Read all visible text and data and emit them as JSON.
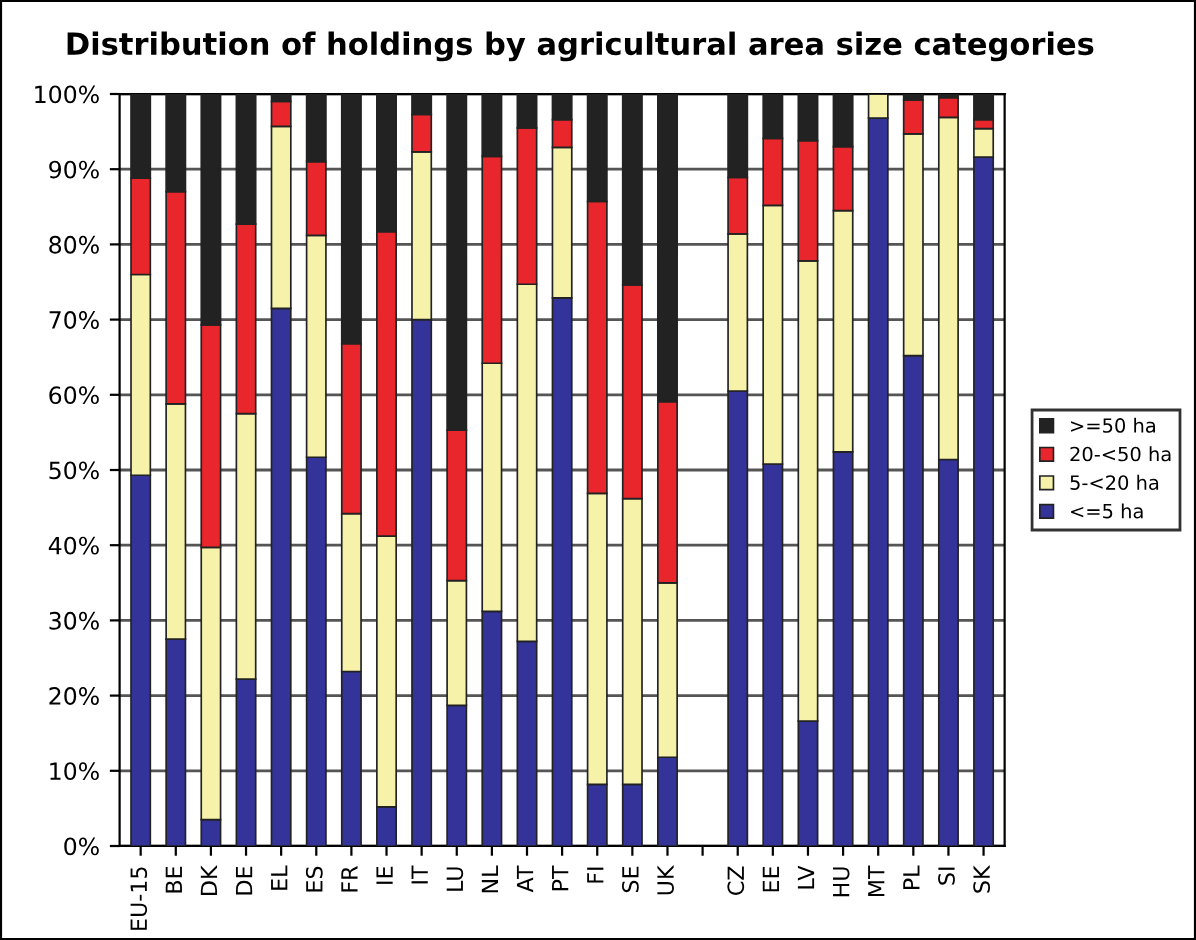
{
  "chart_data": {
    "type": "bar",
    "title": "Distribution of holdings by agricultural area size categories",
    "stacked": true,
    "categories": [
      "EU-15",
      "BE",
      "DK",
      "DE",
      "EL",
      "ES",
      "FR",
      "IE",
      "IT",
      "LU",
      "NL",
      "AT",
      "PT",
      "FI",
      "SE",
      "UK",
      null,
      "CZ",
      "EE",
      "LV",
      "HU",
      "MT",
      "PL",
      "SI",
      "SK"
    ],
    "series": [
      {
        "name": "<=5 ha",
        "color": "#333399",
        "values": [
          49.3,
          27.5,
          3.5,
          22.2,
          71.5,
          51.7,
          23.2,
          5.2,
          70,
          18.7,
          31.2,
          27.2,
          72.9,
          8.2,
          8.2,
          11.8,
          null,
          60.5,
          50.8,
          16.6,
          52.4,
          96.8,
          65.2,
          51.4,
          91.6
        ]
      },
      {
        "name": "5-<20 ha",
        "color": "#f6f2aa",
        "values": [
          26.7,
          31.3,
          36.2,
          35.3,
          24.2,
          29.5,
          21,
          36,
          22.3,
          16.6,
          33,
          47.5,
          20,
          38.7,
          38,
          23.2,
          null,
          20.9,
          34.4,
          61.2,
          32.1,
          3.2,
          29.5,
          45.5,
          3.8
        ]
      },
      {
        "name": "20-<50 ha",
        "color": "#e8262c",
        "values": [
          12.8,
          28.2,
          29.6,
          25.2,
          3.3,
          9.8,
          22.6,
          40.5,
          5,
          20,
          27.5,
          20.8,
          3.7,
          38.8,
          28.4,
          24.1,
          null,
          7.5,
          8.9,
          16,
          8.5,
          0,
          4.5,
          2.6,
          1.2
        ]
      },
      {
        "name": ">=50 ha",
        "color": "#222222",
        "values": [
          11.2,
          13,
          30.7,
          17.3,
          1,
          9,
          33.2,
          18.3,
          2.7,
          44.7,
          8.3,
          4.5,
          3.4,
          14.3,
          25.4,
          40.9,
          null,
          11.1,
          5.9,
          6.2,
          7,
          0,
          0.8,
          0.5,
          3.4
        ]
      }
    ],
    "ylim": [
      0,
      100
    ],
    "yticks": [
      {
        "value": 0,
        "label": "0%"
      },
      {
        "value": 10,
        "label": "10%"
      },
      {
        "value": 20,
        "label": "20%"
      },
      {
        "value": 30,
        "label": "30%"
      },
      {
        "value": 40,
        "label": "40%"
      },
      {
        "value": 50,
        "label": "50%"
      },
      {
        "value": 60,
        "label": "60%"
      },
      {
        "value": 70,
        "label": "70%"
      },
      {
        "value": 80,
        "label": "80%"
      },
      {
        "value": 90,
        "label": "90%"
      },
      {
        "value": 100,
        "label": "100%"
      }
    ],
    "grid": "y",
    "legend": "right"
  }
}
